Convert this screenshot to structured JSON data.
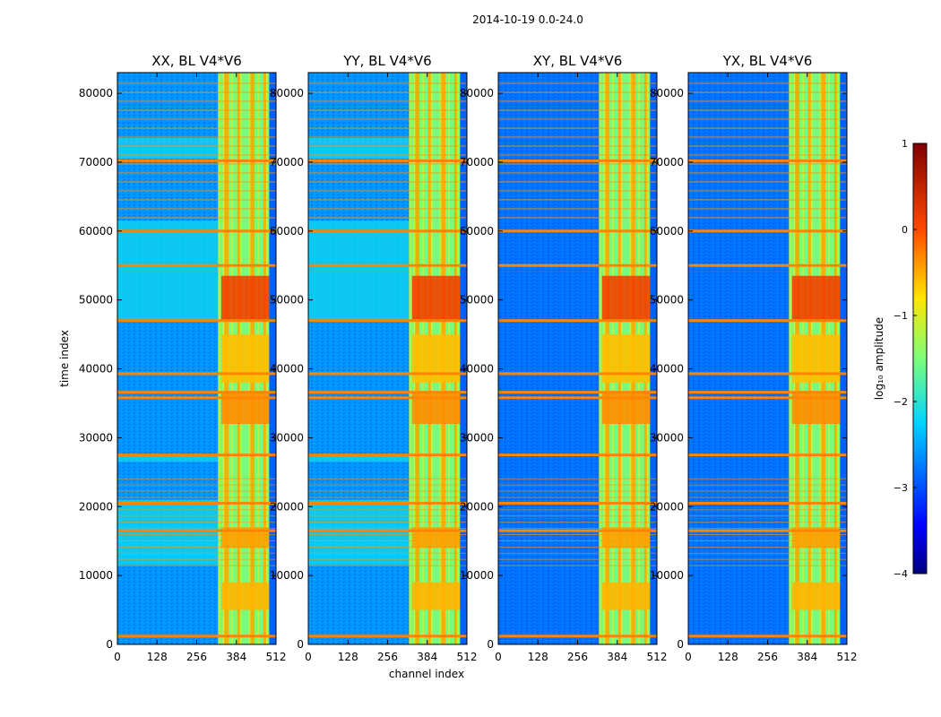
{
  "chart_data": {
    "type": "heatmap",
    "suptitle": "2014-10-19 0.0-24.0",
    "xlabel": "channel index",
    "ylabel": "time index",
    "xlim": [
      0,
      512
    ],
    "ylim": [
      0,
      83000
    ],
    "xticks": [
      0,
      128,
      256,
      384,
      512
    ],
    "yticks": [
      0,
      10000,
      20000,
      30000,
      40000,
      50000,
      60000,
      70000,
      80000
    ],
    "panels": [
      {
        "title": "XX, BL V4*V6",
        "background_log": -2.6
      },
      {
        "title": "YY, BL V4*V6",
        "background_log": -2.6
      },
      {
        "title": "XY, BL V4*V6",
        "background_log": -2.8
      },
      {
        "title": "YX, BL V4*V6",
        "background_log": -2.8
      }
    ],
    "rfi_band_channels": [
      325,
      490
    ],
    "colorbar": {
      "label": "log₁₀ amplitude",
      "range": [
        -4,
        1
      ],
      "ticks": [
        {
          "value": 1,
          "label": "1"
        },
        {
          "value": 0,
          "label": "0"
        },
        {
          "value": -1,
          "label": "−1"
        },
        {
          "value": -2,
          "label": "−2"
        },
        {
          "value": -3,
          "label": "−3"
        },
        {
          "value": -4,
          "label": "−4"
        }
      ],
      "colormap": "jet"
    },
    "flagged_time_rows": [
      1200,
      16500,
      20500,
      27500,
      35800,
      36600,
      39300,
      47000,
      55000,
      60000,
      70200
    ],
    "high_amplitude_time_range": [
      47000,
      54000
    ]
  }
}
